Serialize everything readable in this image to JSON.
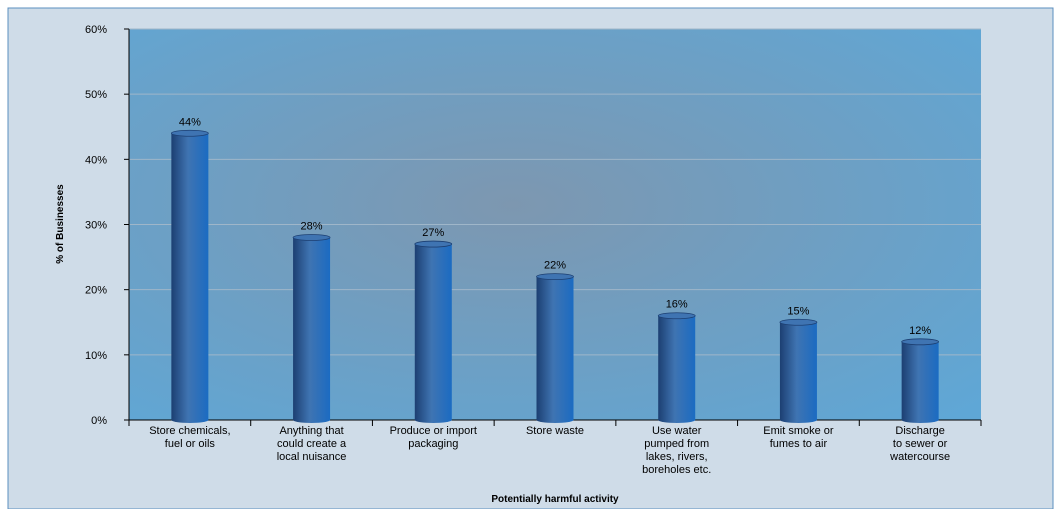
{
  "chart_data": {
    "type": "bar",
    "categories": [
      [
        "Store chemicals,",
        "fuel or oils"
      ],
      [
        "Anything that",
        "could create a",
        "local nuisance"
      ],
      [
        "Produce or import",
        "packaging"
      ],
      [
        "Store waste"
      ],
      [
        "Use water",
        "pumped from",
        "lakes, rivers,",
        "boreholes etc."
      ],
      [
        "Emit smoke or",
        "fumes to air"
      ],
      [
        "Discharge",
        "to sewer or",
        "watercourse"
      ]
    ],
    "values": [
      44,
      28,
      27,
      22,
      16,
      15,
      12
    ],
    "value_labels": [
      "44%",
      "28%",
      "27%",
      "22%",
      "16%",
      "15%",
      "12%"
    ],
    "xlabel": "Potentially harmful activity",
    "ylabel": "% of Businesses",
    "ylim": [
      0,
      60
    ],
    "yticks": [
      0,
      10,
      20,
      30,
      40,
      50,
      60
    ],
    "ytick_labels": [
      "0%",
      "10%",
      "20%",
      "30%",
      "40%",
      "50%",
      "60%"
    ],
    "grid": true,
    "legend": "none",
    "colors": {
      "frame_bg": "#cfdce8",
      "frame_border": "#5b8fbf",
      "plot_bg_center": "#7d97b0",
      "plot_bg_edge": "#5fa7d6",
      "bar_dark": "#1c3f72",
      "bar_mid": "#3f74b2",
      "bar_light": "#1b6bc2",
      "gridline": "#9fb6c9"
    }
  }
}
